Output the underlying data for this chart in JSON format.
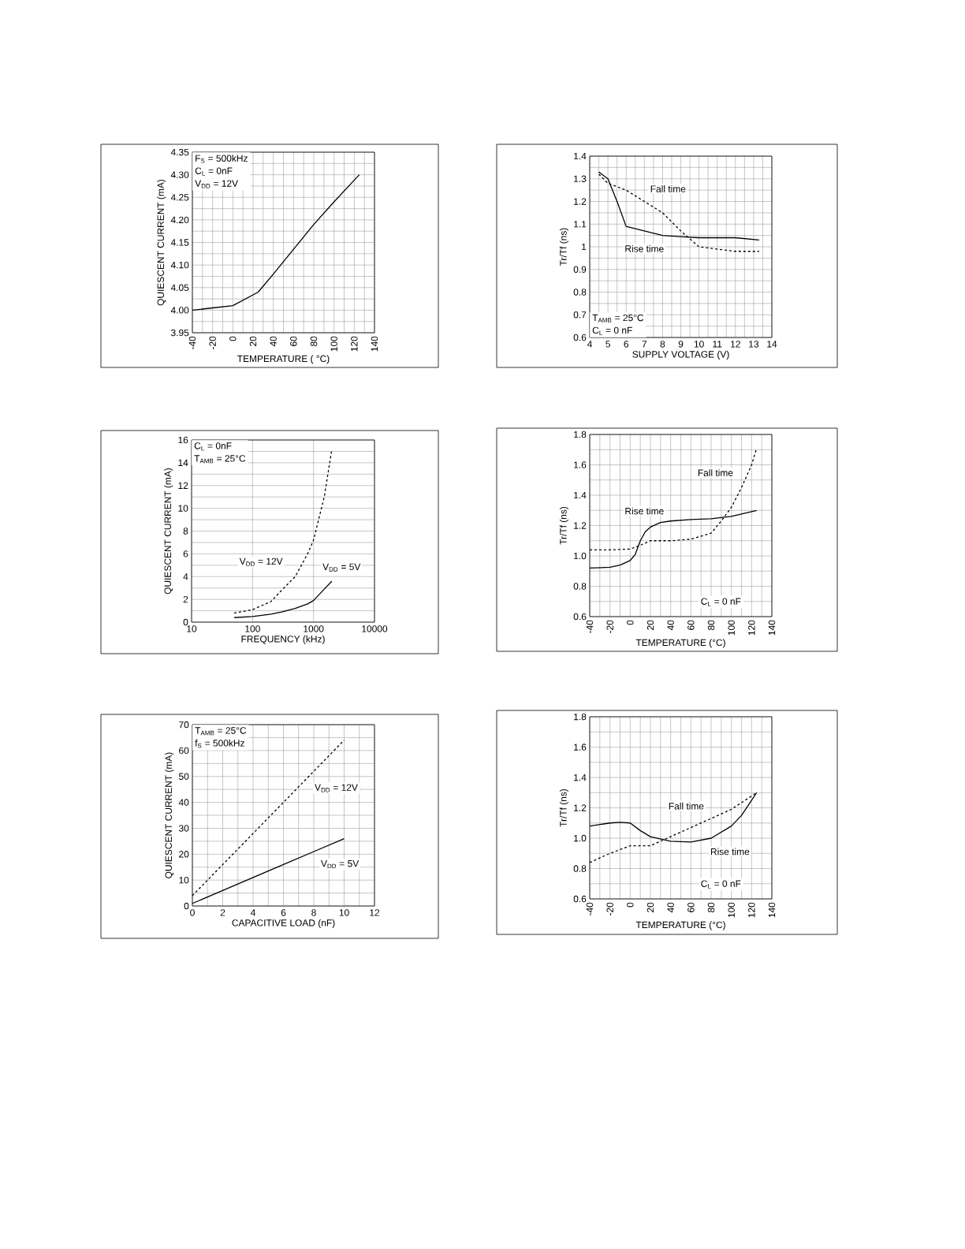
{
  "chart_data": [
    {
      "type": "line",
      "xlabel": "TEMPERATURE ( °C)",
      "ylabel": "QUIESCENT CURRENT (mA)",
      "xlim": [
        -40,
        140
      ],
      "xticks": [
        -40,
        -20,
        0,
        20,
        40,
        60,
        80,
        100,
        120,
        140
      ],
      "ylim": [
        3.95,
        4.35
      ],
      "yticks": [
        3.95,
        {
          "value": 4.0,
          "label": "4.00"
        },
        4.05,
        {
          "value": 4.1,
          "label": "4.10"
        },
        4.15,
        {
          "value": 4.2,
          "label": "4.20"
        },
        4.25,
        {
          "value": 4.3,
          "label": "4.30"
        },
        4.35
      ],
      "grid": true,
      "annotations": [
        "F$_{S}$ = 500kHz",
        "C$_{L}$ = 0nF",
        "V$_{DD}$ = 12V"
      ],
      "series": [
        {
          "color": "#000000",
          "line_style": "solid",
          "x": [
            -40,
            -20,
            0,
            25,
            40,
            60,
            80,
            100,
            125
          ],
          "values": [
            4.0,
            4.005,
            4.01,
            4.04,
            4.08,
            4.135,
            4.19,
            4.24,
            4.3
          ]
        }
      ]
    },
    {
      "type": "line",
      "xlabel": "SUPPLY VOLTAGE (V)",
      "ylabel": "Tr/Tf (ns)",
      "xlim": [
        4,
        14
      ],
      "xticks": [
        4,
        5,
        6,
        7,
        8,
        9,
        10,
        11,
        12,
        13,
        14
      ],
      "ylim": [
        0.6,
        1.4
      ],
      "yticks": [
        0.6,
        0.7,
        0.8,
        0.9,
        1,
        1.1,
        1.2,
        1.3,
        1.4
      ],
      "grid": true,
      "annotations": [
        "T$_{AMB}$ = 25°C",
        "C$_{L}$ = 0 nF"
      ],
      "series": [
        {
          "name": "Fall time",
          "color": "#000000",
          "line_style": "dashed",
          "x": [
            4.5,
            5,
            6,
            7,
            8,
            9,
            10,
            11,
            12,
            13.3
          ],
          "values": [
            1.32,
            1.28,
            1.25,
            1.2,
            1.15,
            1.07,
            1.0,
            0.99,
            0.98,
            0.98
          ]
        },
        {
          "name": "Rise time",
          "color": "#000000",
          "line_style": "solid",
          "x": [
            4.5,
            5,
            5.5,
            6,
            7,
            8,
            9,
            10,
            12,
            13.3
          ],
          "values": [
            1.33,
            1.3,
            1.2,
            1.09,
            1.07,
            1.05,
            1.045,
            1.04,
            1.04,
            1.03
          ]
        }
      ]
    },
    {
      "type": "line",
      "xlabel": "FREQUENCY (kHz)",
      "ylabel": "QUIESCENT CURRENT (mA)",
      "log": "x",
      "xlim": [
        10,
        10000
      ],
      "xticks": [
        10,
        100,
        1000,
        10000
      ],
      "ylim": [
        0,
        16
      ],
      "yticks": [
        0,
        2,
        4,
        6,
        8,
        10,
        12,
        14,
        16
      ],
      "grid": true,
      "annotations": [
        "C$_{L}$ = 0nF",
        "T$_{AMB}$ = 25°C"
      ],
      "series": [
        {
          "name": "V$_{DD}$ = 12V",
          "color": "#000000",
          "line_style": "dashed",
          "x": [
            50,
            80,
            100,
            200,
            300,
            500,
            800,
            1000,
            1500,
            2000
          ],
          "values": [
            0.8,
            1.0,
            1.1,
            1.8,
            2.8,
            4.0,
            6.0,
            7.2,
            11,
            15.2
          ]
        },
        {
          "name": "V$_{DD}$ = 5V",
          "color": "#000000",
          "line_style": "solid",
          "x": [
            50,
            100,
            200,
            300,
            500,
            800,
            1000,
            1500,
            2000
          ],
          "values": [
            0.4,
            0.5,
            0.7,
            0.9,
            1.2,
            1.6,
            1.9,
            2.9,
            3.6
          ]
        }
      ]
    },
    {
      "type": "line",
      "xlabel": "TEMPERATURE (°C)",
      "ylabel": "Tr/Tf (ns)",
      "xlim": [
        -40,
        140
      ],
      "xticks": [
        -40,
        -20,
        0,
        20,
        40,
        60,
        80,
        100,
        120,
        140
      ],
      "ylim": [
        0.6,
        1.8
      ],
      "yticks": [
        0.6,
        0.8,
        {
          "value": 1.0,
          "label": "1.0"
        },
        1.2,
        1.4,
        1.6,
        1.8
      ],
      "grid": true,
      "annotations": [
        "C$_{L}$ = 0 nF"
      ],
      "series": [
        {
          "name": "Fall time",
          "color": "#000000",
          "line_style": "dashed",
          "x": [
            -40,
            -20,
            0,
            10,
            20,
            40,
            60,
            80,
            90,
            100,
            110,
            120,
            125
          ],
          "values": [
            1.04,
            1.04,
            1.045,
            1.07,
            1.1,
            1.1,
            1.11,
            1.15,
            1.23,
            1.32,
            1.45,
            1.6,
            1.71
          ]
        },
        {
          "name": "Rise time",
          "color": "#000000",
          "line_style": "solid",
          "x": [
            -40,
            -20,
            -10,
            0,
            5,
            10,
            15,
            20,
            30,
            40,
            60,
            80,
            100,
            125
          ],
          "values": [
            0.92,
            0.925,
            0.94,
            0.97,
            1.01,
            1.1,
            1.16,
            1.19,
            1.22,
            1.23,
            1.24,
            1.245,
            1.26,
            1.3
          ]
        }
      ]
    },
    {
      "type": "line",
      "xlabel": "CAPACITIVE LOAD (nF)",
      "ylabel": "QUIESCENT CURRENT (mA)",
      "xlim": [
        0,
        12
      ],
      "xticks": [
        0,
        2,
        4,
        6,
        8,
        10,
        12
      ],
      "ylim": [
        0,
        70
      ],
      "yticks": [
        0,
        10,
        20,
        30,
        40,
        50,
        60,
        70
      ],
      "grid": true,
      "annotations": [
        "T$_{AMB}$ = 25°C",
        "f$_{S}$ = 500kHz"
      ],
      "series": [
        {
          "name": "V$_{DD}$ = 12V",
          "color": "#000000",
          "line_style": "dashed",
          "x": [
            0,
            1,
            2,
            3,
            4,
            5,
            6,
            7,
            8,
            9,
            10
          ],
          "values": [
            4,
            10,
            16,
            22,
            28,
            34,
            40,
            46,
            52,
            58,
            64
          ]
        },
        {
          "name": "V$_{DD}$ = 5V",
          "color": "#000000",
          "line_style": "solid",
          "x": [
            0,
            2,
            4,
            6,
            8,
            10
          ],
          "values": [
            1,
            6,
            11,
            16,
            21,
            26
          ]
        }
      ]
    },
    {
      "type": "line",
      "xlabel": "TEMPERATURE (°C)",
      "ylabel": "Tr/Tf (ns)",
      "xlim": [
        -40,
        140
      ],
      "xticks": [
        -40,
        -20,
        0,
        20,
        40,
        60,
        80,
        100,
        120,
        140
      ],
      "ylim": [
        0.6,
        1.8
      ],
      "yticks": [
        0.6,
        0.8,
        {
          "value": 1.0,
          "label": "1.0"
        },
        1.2,
        1.4,
        1.6,
        1.8
      ],
      "grid": true,
      "annotations": [
        "C$_{L}$ = 0 nF"
      ],
      "series": [
        {
          "name": "Fall time",
          "color": "#000000",
          "line_style": "dashed",
          "x": [
            -40,
            -20,
            0,
            20,
            40,
            60,
            80,
            100,
            125
          ],
          "values": [
            0.84,
            0.9,
            0.95,
            0.95,
            1.01,
            1.07,
            1.13,
            1.19,
            1.3
          ]
        },
        {
          "name": "Rise time",
          "color": "#000000",
          "line_style": "solid",
          "x": [
            -40,
            -20,
            -10,
            0,
            10,
            20,
            40,
            60,
            80,
            100,
            110,
            125
          ],
          "values": [
            1.08,
            1.1,
            1.105,
            1.1,
            1.05,
            1.01,
            0.98,
            0.975,
            1.0,
            1.08,
            1.15,
            1.3
          ]
        }
      ]
    }
  ]
}
